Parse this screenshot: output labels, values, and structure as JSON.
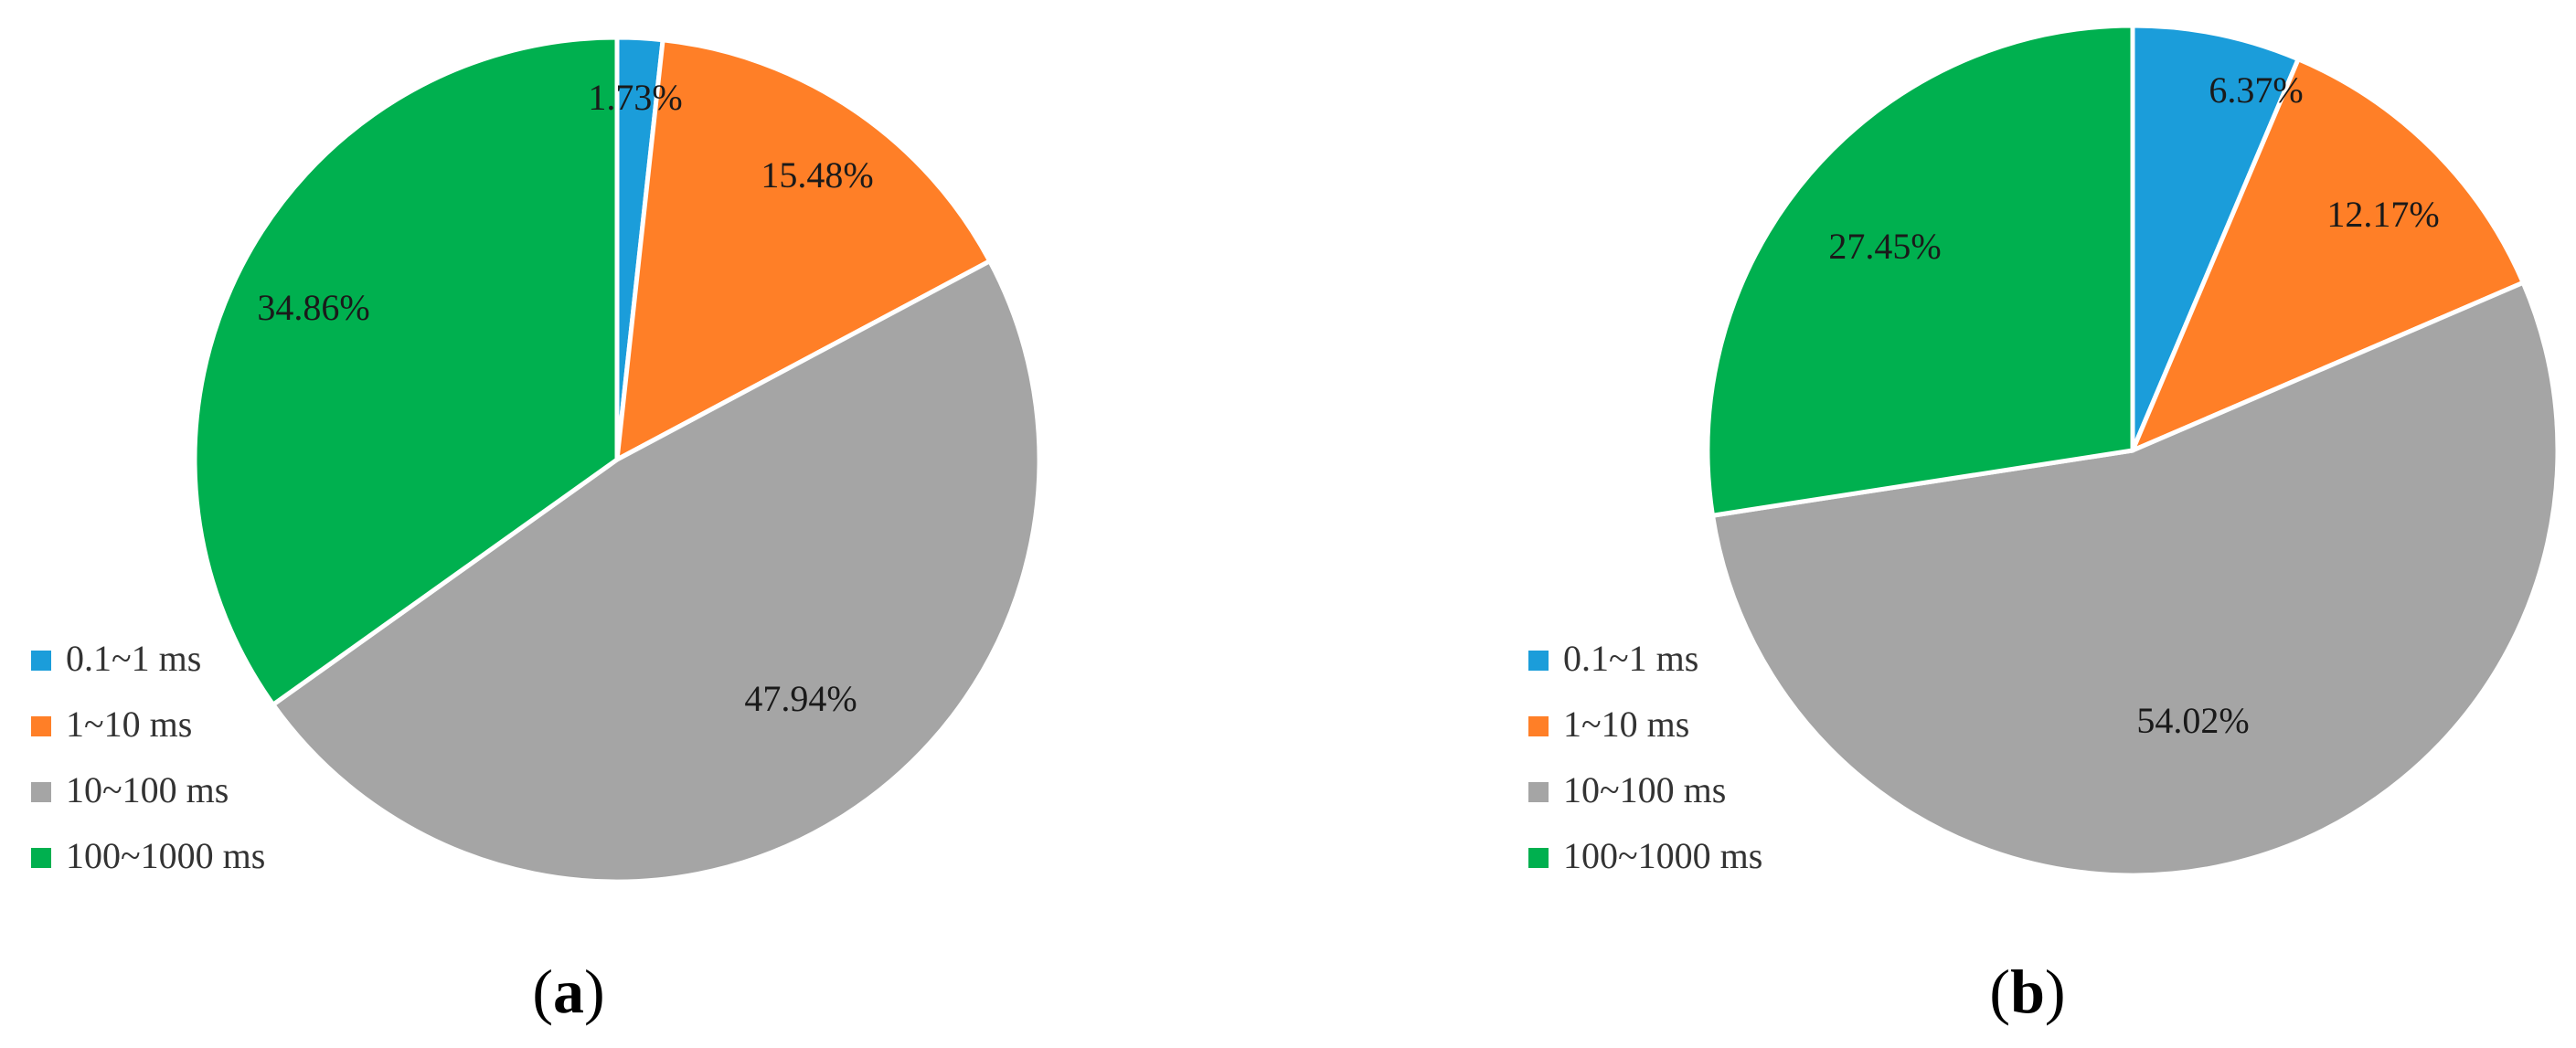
{
  "chart_data": [
    {
      "type": "pie",
      "panel_label": {
        "open": "(",
        "letter": "a",
        "close": ")"
      },
      "categories": [
        "0.1~1 ms",
        "1~10 ms",
        "10~100 ms",
        "100~1000 ms"
      ],
      "values": [
        1.73,
        15.48,
        47.94,
        34.86
      ],
      "data_labels": [
        "1.73%",
        "15.48%",
        "47.94%",
        "34.86%"
      ],
      "colors": [
        "#1B9DDA",
        "#FF7F27",
        "#A5A5A5",
        "#00B04F"
      ],
      "start_angle_deg": 0,
      "direction": "clockwise",
      "legend_position": "bottom-left",
      "title": ""
    },
    {
      "type": "pie",
      "panel_label": {
        "open": "(",
        "letter": "b",
        "close": ")"
      },
      "categories": [
        "0.1~1 ms",
        "1~10 ms",
        "10~100 ms",
        "100~1000 ms"
      ],
      "values": [
        6.37,
        12.17,
        54.02,
        27.45
      ],
      "data_labels": [
        "6.37%",
        "12.17%",
        "54.02%",
        "27.45%"
      ],
      "colors": [
        "#1B9DDA",
        "#FF7F27",
        "#A5A5A5",
        "#00B04F"
      ],
      "start_angle_deg": 0,
      "direction": "clockwise",
      "legend_position": "bottom-left",
      "title": ""
    }
  ]
}
